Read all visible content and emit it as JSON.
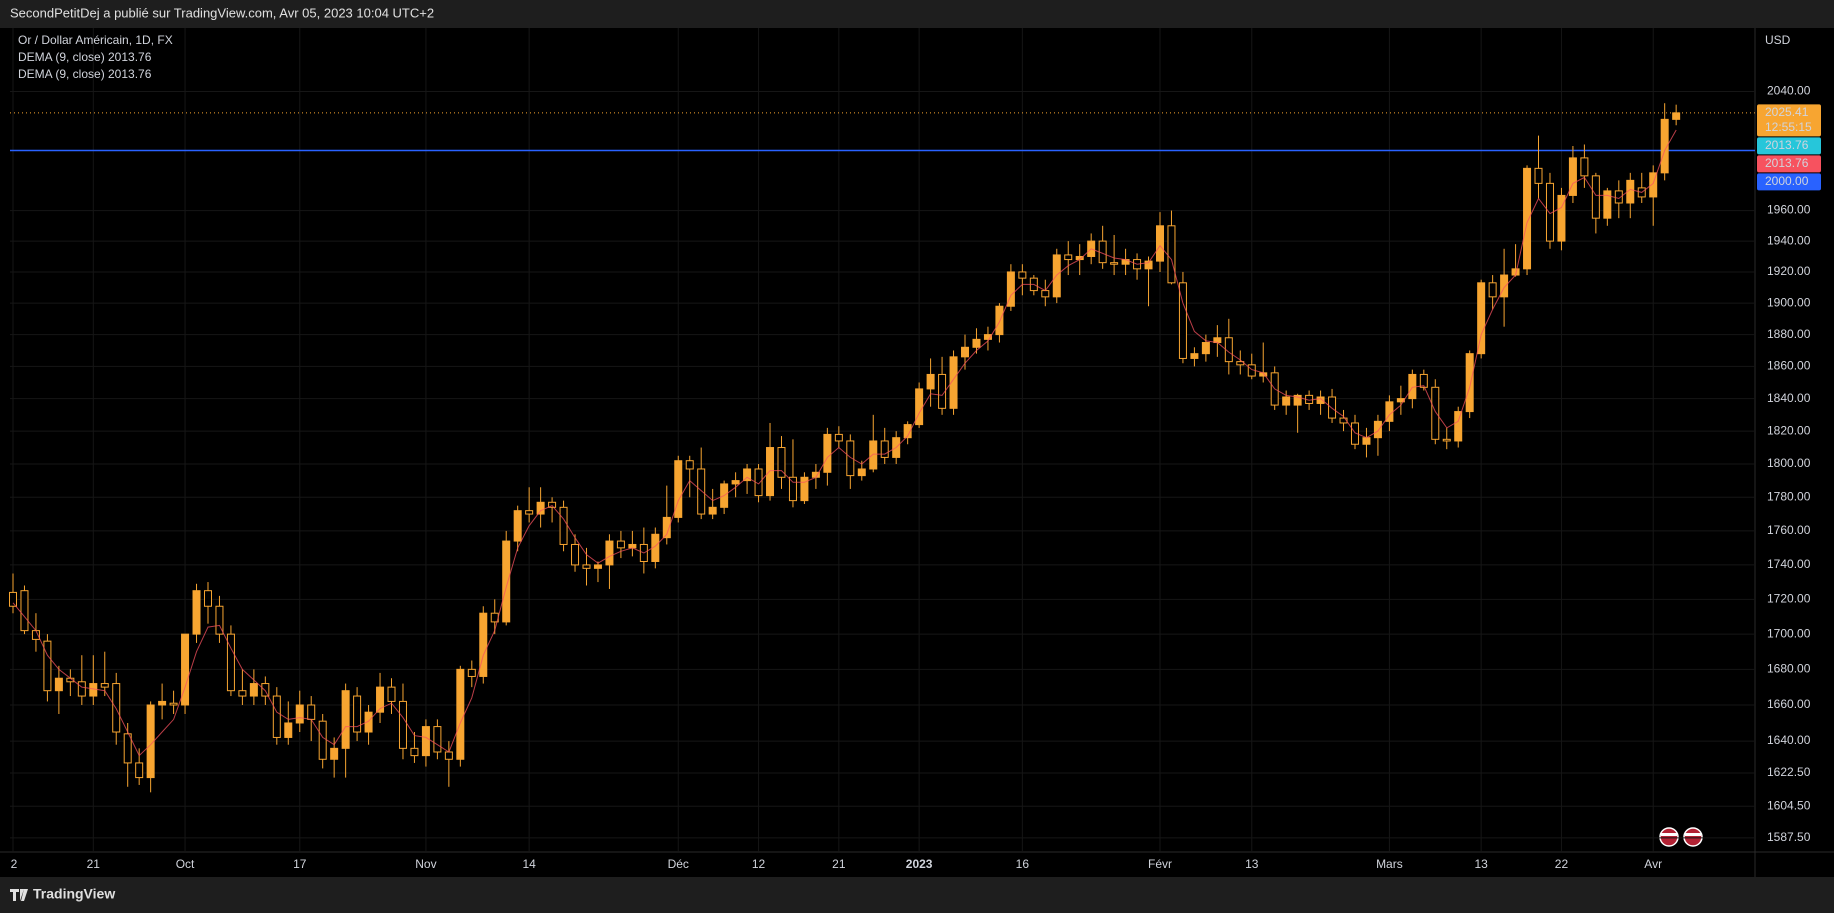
{
  "header": {
    "text": "SecondPetitDej a publié sur TradingView.com, Avr 05, 2023 10:04 UTC+2"
  },
  "chart_data": {
    "type": "candlestick",
    "title": "Or / Dollar Américain, 1D, FX",
    "color": "#f7a531",
    "open": [
      1724,
      1725,
      1702,
      1696,
      1668,
      1675,
      1673,
      1665,
      1672,
      1672,
      1644,
      1628,
      1620,
      1660,
      1661,
      1660,
      1700,
      1725,
      1716,
      1700,
      1668,
      1665,
      1672,
      1665,
      1642,
      1650,
      1660,
      1651,
      1630,
      1636,
      1665,
      1645,
      1656,
      1670,
      1662,
      1636,
      1632,
      1648,
      1634,
      1630,
      1680,
      1676,
      1712,
      1707,
      1754,
      1772,
      1770,
      1777,
      1774,
      1752,
      1740,
      1738,
      1740,
      1754,
      1750,
      1752,
      1742,
      1756,
      1768,
      1802,
      1797,
      1770,
      1774,
      1788,
      1790,
      1797,
      1781,
      1810,
      1792,
      1778,
      1792,
      1795,
      1818,
      1814,
      1793,
      1797,
      1814,
      1804,
      1816,
      1824,
      1846,
      1855,
      1834,
      1866,
      1872,
      1877,
      1880,
      1898,
      1920,
      1916,
      1908,
      1904,
      1931,
      1928,
      1930,
      1940,
      1926,
      1925,
      1928,
      1922,
      1927,
      1950,
      1913,
      1865,
      1868,
      1875,
      1878,
      1863,
      1861,
      1854,
      1856,
      1836,
      1836,
      1842,
      1837,
      1841,
      1828,
      1825,
      1812,
      1816,
      1826,
      1838,
      1840,
      1855,
      1847,
      1815,
      1814,
      1832,
      1868,
      1913,
      1904,
      1918,
      1922,
      1988,
      1978,
      1940,
      1970,
      1995,
      1983,
      1955,
      1973,
      1965,
      1975,
      1969,
      1985,
      2021
    ],
    "high": [
      1735,
      1728,
      1712,
      1700,
      1682,
      1680,
      1688,
      1688,
      1690,
      1678,
      1650,
      1636,
      1662,
      1672,
      1668,
      1700,
      1729,
      1730,
      1722,
      1705,
      1680,
      1680,
      1676,
      1670,
      1662,
      1668,
      1665,
      1655,
      1642,
      1672,
      1670,
      1660,
      1678,
      1675,
      1672,
      1645,
      1652,
      1652,
      1640,
      1682,
      1685,
      1716,
      1720,
      1760,
      1775,
      1786,
      1786,
      1780,
      1778,
      1758,
      1750,
      1742,
      1758,
      1760,
      1760,
      1762,
      1762,
      1787,
      1805,
      1805,
      1810,
      1785,
      1790,
      1795,
      1800,
      1800,
      1825,
      1817,
      1815,
      1795,
      1800,
      1822,
      1823,
      1818,
      1802,
      1830,
      1822,
      1820,
      1826,
      1850,
      1865,
      1866,
      1870,
      1880,
      1884,
      1885,
      1900,
      1925,
      1925,
      1918,
      1915,
      1935,
      1940,
      1938,
      1945,
      1950,
      1944,
      1935,
      1932,
      1930,
      1959,
      1960,
      1920,
      1872,
      1880,
      1886,
      1890,
      1870,
      1868,
      1875,
      1860,
      1845,
      1843,
      1845,
      1845,
      1846,
      1833,
      1830,
      1822,
      1830,
      1842,
      1848,
      1858,
      1858,
      1852,
      1822,
      1835,
      1870,
      1915,
      1918,
      1935,
      1938,
      1990,
      2010,
      1985,
      1975,
      2003,
      2004,
      1985,
      1975,
      1980,
      1985,
      1985,
      1990,
      2032,
      2031
    ],
    "low": [
      1712,
      1700,
      1690,
      1662,
      1655,
      1665,
      1660,
      1660,
      1665,
      1638,
      1615,
      1616,
      1612,
      1652,
      1655,
      1655,
      1695,
      1706,
      1695,
      1665,
      1660,
      1660,
      1660,
      1638,
      1638,
      1645,
      1640,
      1625,
      1620,
      1620,
      1640,
      1638,
      1650,
      1655,
      1630,
      1628,
      1626,
      1630,
      1615,
      1626,
      1670,
      1672,
      1700,
      1705,
      1748,
      1765,
      1762,
      1765,
      1748,
      1736,
      1728,
      1730,
      1726,
      1744,
      1745,
      1735,
      1738,
      1752,
      1765,
      1780,
      1767,
      1767,
      1770,
      1780,
      1782,
      1777,
      1778,
      1785,
      1774,
      1776,
      1785,
      1787,
      1810,
      1785,
      1790,
      1795,
      1800,
      1800,
      1812,
      1822,
      1835,
      1830,
      1830,
      1858,
      1868,
      1870,
      1875,
      1895,
      1905,
      1905,
      1898,
      1900,
      1918,
      1918,
      1925,
      1922,
      1918,
      1918,
      1915,
      1898,
      1920,
      1912,
      1862,
      1860,
      1863,
      1866,
      1855,
      1855,
      1852,
      1850,
      1833,
      1830,
      1819,
      1833,
      1830,
      1825,
      1820,
      1809,
      1804,
      1805,
      1820,
      1830,
      1834,
      1845,
      1812,
      1809,
      1810,
      1828,
      1865,
      1896,
      1885,
      1917,
      1918,
      1968,
      1935,
      1934,
      1965,
      1975,
      1945,
      1950,
      1955,
      1955,
      1965,
      1950,
      1980,
      2017
    ],
    "close": [
      1716,
      1702,
      1697,
      1668,
      1675,
      1673,
      1665,
      1672,
      1670,
      1645,
      1628,
      1620,
      1660,
      1662,
      1660,
      1700,
      1725,
      1716,
      1700,
      1668,
      1665,
      1672,
      1665,
      1642,
      1650,
      1660,
      1652,
      1630,
      1636,
      1668,
      1645,
      1656,
      1670,
      1662,
      1636,
      1632,
      1648,
      1634,
      1630,
      1680,
      1676,
      1712,
      1707,
      1754,
      1772,
      1770,
      1777,
      1774,
      1752,
      1740,
      1738,
      1740,
      1754,
      1750,
      1752,
      1742,
      1758,
      1768,
      1802,
      1797,
      1770,
      1774,
      1788,
      1790,
      1797,
      1781,
      1810,
      1792,
      1778,
      1792,
      1795,
      1818,
      1814,
      1793,
      1797,
      1814,
      1804,
      1816,
      1824,
      1846,
      1855,
      1834,
      1866,
      1872,
      1877,
      1880,
      1898,
      1920,
      1916,
      1908,
      1904,
      1931,
      1928,
      1930,
      1940,
      1926,
      1925,
      1928,
      1922,
      1927,
      1950,
      1913,
      1865,
      1868,
      1875,
      1878,
      1863,
      1861,
      1854,
      1856,
      1836,
      1841,
      1842,
      1837,
      1841,
      1828,
      1825,
      1812,
      1816,
      1826,
      1838,
      1840,
      1855,
      1847,
      1815,
      1814,
      1832,
      1868,
      1913,
      1904,
      1918,
      1922,
      1988,
      1978,
      1940,
      1970,
      1995,
      1983,
      1955,
      1973,
      1965,
      1980,
      1969,
      1985,
      2021,
      2025.41
    ],
    "countdown": "12:55:15",
    "series": [
      {
        "name": "DEMA (9, close)",
        "color": "#f7525f",
        "values": [
          1718,
          1710,
          1702,
          1688,
          1680,
          1675,
          1670,
          1669,
          1668,
          1658,
          1645,
          1632,
          1638,
          1645,
          1652,
          1670,
          1690,
          1704,
          1705,
          1692,
          1680,
          1674,
          1668,
          1656,
          1652,
          1653,
          1652,
          1642,
          1638,
          1648,
          1648,
          1651,
          1658,
          1661,
          1653,
          1643,
          1642,
          1638,
          1634,
          1650,
          1664,
          1688,
          1702,
          1727,
          1750,
          1763,
          1772,
          1775,
          1767,
          1756,
          1746,
          1741,
          1745,
          1748,
          1750,
          1747,
          1751,
          1758,
          1778,
          1790,
          1784,
          1778,
          1781,
          1786,
          1792,
          1788,
          1796,
          1796,
          1789,
          1789,
          1792,
          1804,
          1810,
          1804,
          1800,
          1806,
          1806,
          1810,
          1817,
          1831,
          1843,
          1842,
          1852,
          1862,
          1870,
          1876,
          1888,
          1905,
          1912,
          1912,
          1908,
          1918,
          1924,
          1928,
          1935,
          1932,
          1929,
          1928,
          1925,
          1926,
          1937,
          1928,
          1900,
          1882,
          1876,
          1875,
          1869,
          1864,
          1858,
          1856,
          1846,
          1842,
          1841,
          1839,
          1840,
          1834,
          1829,
          1819,
          1816,
          1820,
          1830,
          1836,
          1847,
          1848,
          1832,
          1822,
          1826,
          1847,
          1880,
          1896,
          1910,
          1918,
          1952,
          1968,
          1958,
          1962,
          1978,
          1982,
          1970,
          1970,
          1968,
          1974,
          1972,
          1978,
          2000,
          2013.76
        ]
      },
      {
        "name": "DEMA (9, close)",
        "color": "#26c6da",
        "value": 2013.76
      }
    ],
    "hline": {
      "value": 2000,
      "label": "2000.00",
      "color": "#2962ff"
    },
    "y_axis_label": "USD",
    "log_scale": true,
    "grid": true,
    "ylim": [
      1580,
      2084
    ],
    "yticks": [
      {
        "value": 1587.5,
        "label": "1587.50"
      },
      {
        "value": 1604.5,
        "label": "1604.50"
      },
      {
        "value": 1622.5,
        "label": "1622.50"
      },
      {
        "value": 1640,
        "label": "1640.00"
      },
      {
        "value": 1660,
        "label": "1660.00"
      },
      {
        "value": 1680,
        "label": "1680.00"
      },
      {
        "value": 1700,
        "label": "1700.00"
      },
      {
        "value": 1720,
        "label": "1720.00"
      },
      {
        "value": 1740,
        "label": "1740.00"
      },
      {
        "value": 1760,
        "label": "1760.00"
      },
      {
        "value": 1780,
        "label": "1780.00"
      },
      {
        "value": 1800,
        "label": "1800.00"
      },
      {
        "value": 1820,
        "label": "1820.00"
      },
      {
        "value": 1840,
        "label": "1840.00"
      },
      {
        "value": 1860,
        "label": "1860.00"
      },
      {
        "value": 1880,
        "label": "1880.00"
      },
      {
        "value": 1900,
        "label": "1900.00"
      },
      {
        "value": 1920,
        "label": "1920.00"
      },
      {
        "value": 1940,
        "label": "1940.00"
      },
      {
        "value": 1960,
        "label": "1960.00"
      },
      {
        "value": 2040,
        "label": "2040.00"
      }
    ],
    "xticks": [
      {
        "value": 0,
        "label": "2"
      },
      {
        "value": 7,
        "label": "21"
      },
      {
        "value": 15,
        "label": "Oct"
      },
      {
        "value": 25,
        "label": "17"
      },
      {
        "value": 36,
        "label": "Nov"
      },
      {
        "value": 45,
        "label": "14"
      },
      {
        "value": 58,
        "label": "Déc"
      },
      {
        "value": 65,
        "label": "12"
      },
      {
        "value": 72,
        "label": "21"
      },
      {
        "value": 79,
        "label": "2023",
        "bold": true
      },
      {
        "value": 88,
        "label": "16"
      },
      {
        "value": 100,
        "label": "Févr"
      },
      {
        "value": 108,
        "label": "13"
      },
      {
        "value": 120,
        "label": "Mars"
      },
      {
        "value": 128,
        "label": "13"
      },
      {
        "value": 135,
        "label": "22"
      },
      {
        "value": 143,
        "label": "Avr"
      }
    ]
  },
  "footer": {
    "brand": "TradingView"
  }
}
